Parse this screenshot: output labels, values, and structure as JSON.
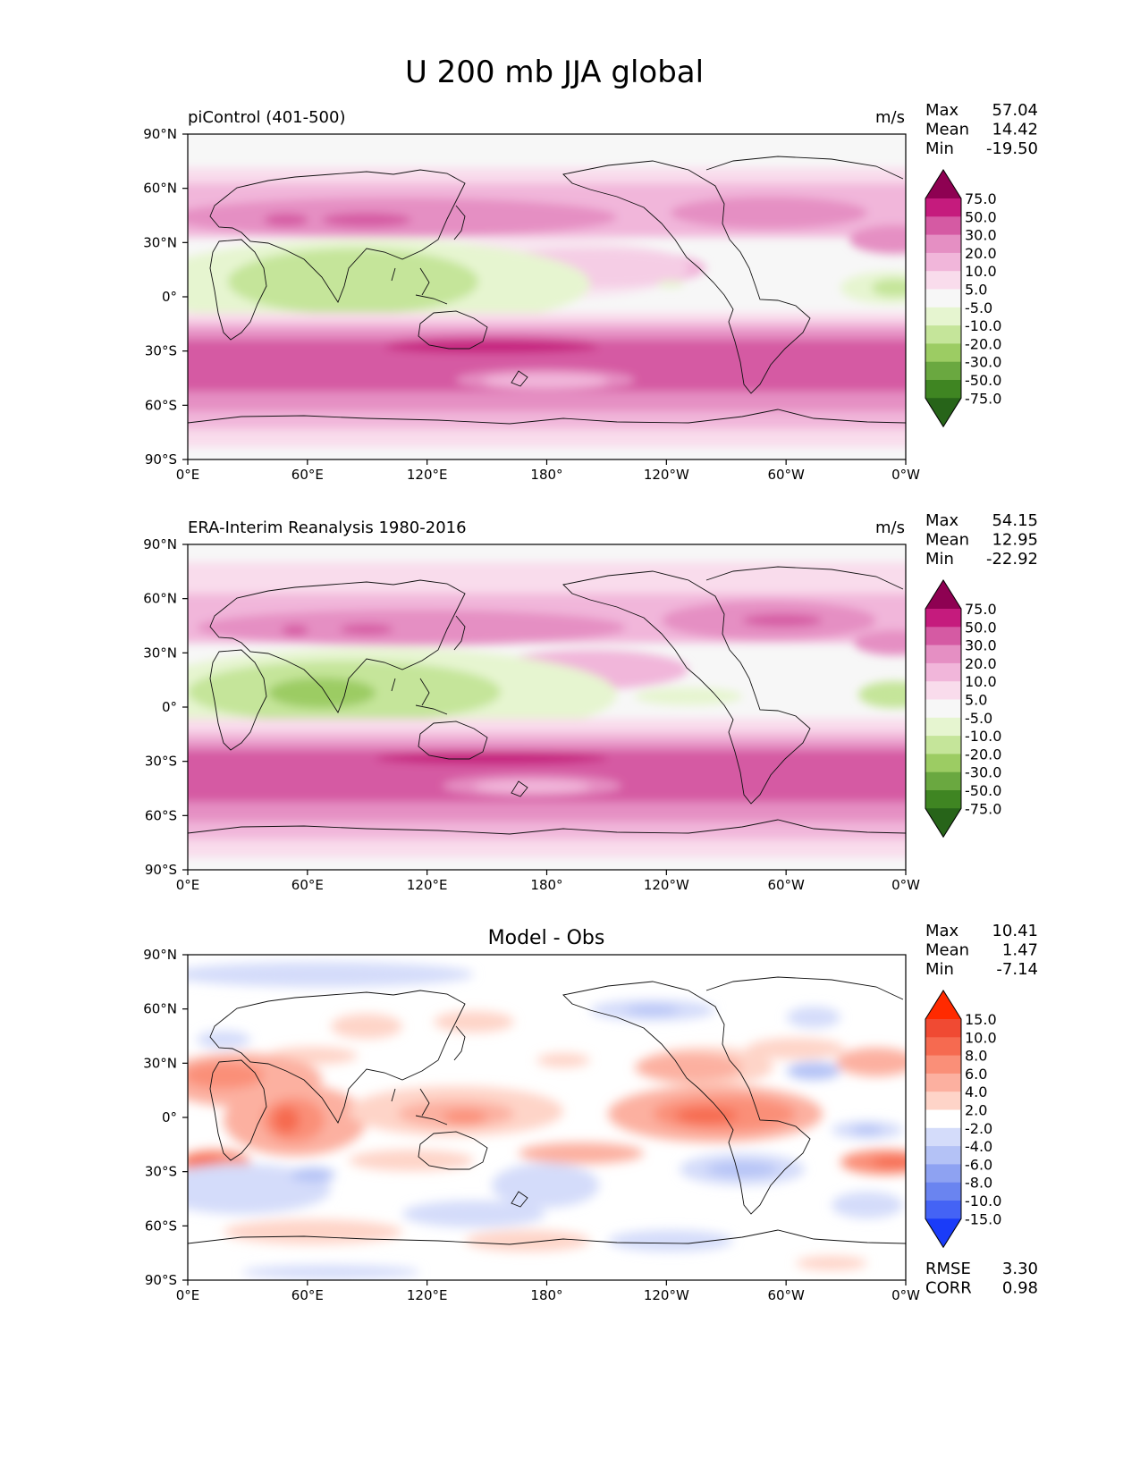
{
  "title": "U 200 mb JJA global",
  "x_ticks": [
    "0°E",
    "60°E",
    "120°E",
    "180°",
    "120°W",
    "60°W",
    "0°W"
  ],
  "y_ticks": [
    "90°N",
    "60°N",
    "30°N",
    "0°",
    "30°S",
    "60°S",
    "90°S"
  ],
  "panels": [
    {
      "id": "model",
      "left_title": "piControl (401-500)",
      "center_title": "",
      "units": "m/s",
      "stats": [
        {
          "label": "Max",
          "value": "57.04"
        },
        {
          "label": "Mean",
          "value": "14.42"
        },
        {
          "label": "Min",
          "value": "-19.50"
        }
      ],
      "colorbar": {
        "levels": [
          "75.0",
          "50.0",
          "30.0",
          "20.0",
          "10.0",
          "5.0",
          "-5.0",
          "-10.0",
          "-20.0",
          "-30.0",
          "-50.0",
          "-75.0"
        ],
        "colors": [
          "#8e0152",
          "#c51b7d",
          "#d55aa3",
          "#e58fc3",
          "#f1b6da",
          "#f9dcec",
          "#f7f7f7",
          "#e6f5d0",
          "#c5e59a",
          "#9ccc63",
          "#6aa840",
          "#3f8522",
          "#276419"
        ]
      }
    },
    {
      "id": "obs",
      "left_title": "ERA-Interim Reanalysis 1980-2016",
      "center_title": "",
      "units": "m/s",
      "stats": [
        {
          "label": "Max",
          "value": "54.15"
        },
        {
          "label": "Mean",
          "value": "12.95"
        },
        {
          "label": "Min",
          "value": "-22.92"
        }
      ],
      "colorbar": {
        "levels": [
          "75.0",
          "50.0",
          "30.0",
          "20.0",
          "10.0",
          "5.0",
          "-5.0",
          "-10.0",
          "-20.0",
          "-30.0",
          "-50.0",
          "-75.0"
        ],
        "colors": [
          "#8e0152",
          "#c51b7d",
          "#d55aa3",
          "#e58fc3",
          "#f1b6da",
          "#f9dcec",
          "#f7f7f7",
          "#e6f5d0",
          "#c5e59a",
          "#9ccc63",
          "#6aa840",
          "#3f8522",
          "#276419"
        ]
      }
    },
    {
      "id": "diff",
      "left_title": "",
      "center_title": "Model - Obs",
      "units": "",
      "stats": [
        {
          "label": "Max",
          "value": "10.41"
        },
        {
          "label": "Mean",
          "value": "1.47"
        },
        {
          "label": "Min",
          "value": "-7.14"
        }
      ],
      "colorbar": {
        "levels": [
          "15.0",
          "10.0",
          "8.0",
          "6.0",
          "4.0",
          "2.0",
          "-2.0",
          "-4.0",
          "-6.0",
          "-8.0",
          "-10.0",
          "-15.0"
        ],
        "colors": [
          "#ff2a00",
          "#f04a33",
          "#f66a50",
          "#fa8f78",
          "#fcb0a0",
          "#fed4c8",
          "#ffffff",
          "#d4dcfa",
          "#b4c2f6",
          "#8ea2f2",
          "#6a84f0",
          "#4463f5",
          "#1a3cf9"
        ]
      },
      "metrics": [
        {
          "label": "RMSE",
          "value": "3.30"
        },
        {
          "label": "CORR",
          "value": "0.98"
        }
      ]
    }
  ]
}
